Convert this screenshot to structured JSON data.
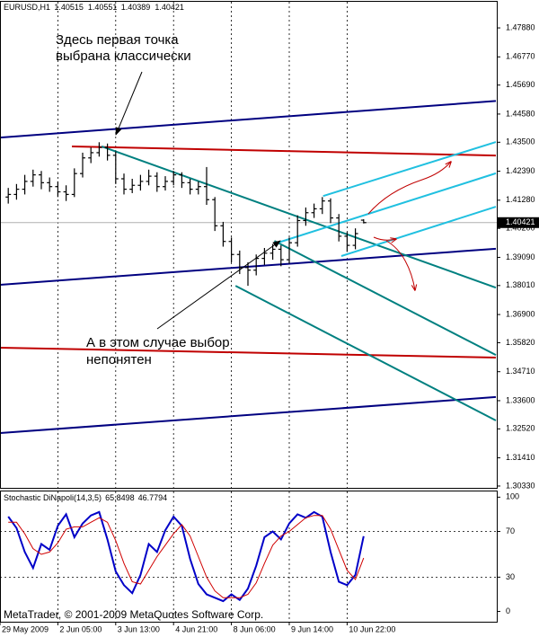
{
  "chart_data": [
    {
      "type": "ohlc",
      "title": "EURUSD,H1",
      "x": [
        1,
        2,
        3,
        4,
        5,
        6,
        7,
        8,
        9,
        10,
        11,
        12,
        13,
        14,
        15,
        16,
        17,
        18,
        19,
        20,
        21,
        22,
        23,
        24,
        25,
        26,
        27,
        28,
        29,
        30,
        31,
        32,
        33,
        34,
        35,
        36,
        37,
        38,
        39,
        40,
        41,
        42,
        43,
        44
      ],
      "open": [
        1.414,
        1.415,
        1.417,
        1.42,
        1.4225,
        1.4195,
        1.418,
        1.416,
        1.415,
        1.423,
        1.429,
        1.431,
        1.433,
        1.43,
        1.421,
        1.417,
        1.4185,
        1.42,
        1.422,
        1.418,
        1.42,
        1.4225,
        1.4195,
        1.417,
        1.418,
        1.413,
        1.403,
        1.397,
        1.392,
        1.387,
        1.386,
        1.3905,
        1.3925,
        1.394,
        1.39,
        1.3965,
        1.405,
        1.408,
        1.4095,
        1.4125,
        1.406,
        1.399,
        1.3955,
        1.40515
      ],
      "high": [
        1.4175,
        1.419,
        1.4225,
        1.4245,
        1.424,
        1.4215,
        1.42,
        1.4185,
        1.425,
        1.431,
        1.433,
        1.435,
        1.4345,
        1.4315,
        1.423,
        1.421,
        1.4225,
        1.4245,
        1.4235,
        1.422,
        1.424,
        1.4235,
        1.421,
        1.42,
        1.4255,
        1.414,
        1.4045,
        1.3985,
        1.3935,
        1.389,
        1.392,
        1.3945,
        1.396,
        1.3955,
        1.3985,
        1.407,
        1.41,
        1.4115,
        1.414,
        1.4135,
        1.4075,
        1.4005,
        1.402,
        1.40551
      ],
      "low": [
        1.4115,
        1.413,
        1.415,
        1.418,
        1.417,
        1.416,
        1.414,
        1.4125,
        1.414,
        1.4215,
        1.427,
        1.4295,
        1.428,
        1.419,
        1.415,
        1.4155,
        1.4165,
        1.4185,
        1.416,
        1.4165,
        1.4185,
        1.4175,
        1.415,
        1.415,
        1.411,
        1.401,
        1.395,
        1.389,
        1.3845,
        1.38,
        1.384,
        1.388,
        1.39,
        1.3875,
        1.3885,
        1.395,
        1.403,
        1.406,
        1.4075,
        1.404,
        1.397,
        1.393,
        1.394,
        1.40389
      ],
      "close": [
        1.415,
        1.417,
        1.42,
        1.4225,
        1.4195,
        1.418,
        1.416,
        1.415,
        1.423,
        1.429,
        1.431,
        1.433,
        1.43,
        1.421,
        1.417,
        1.4185,
        1.42,
        1.422,
        1.418,
        1.42,
        1.4225,
        1.4195,
        1.417,
        1.418,
        1.413,
        1.403,
        1.397,
        1.392,
        1.387,
        1.386,
        1.3905,
        1.3925,
        1.394,
        1.39,
        1.3965,
        1.405,
        1.408,
        1.4095,
        1.4125,
        1.406,
        1.399,
        1.3955,
        1.4,
        1.40421
      ],
      "color": "#000000",
      "xlim": [
        0,
        60
      ],
      "ylim": [
        1.3026,
        1.4888
      ],
      "yticks": [
        {
          "value": 1.4788,
          "label": "1.47880"
        },
        {
          "value": 1.4677,
          "label": "1.46770"
        },
        {
          "value": 1.4569,
          "label": "1.45690"
        },
        {
          "value": 1.4458,
          "label": "1.44580"
        },
        {
          "value": 1.435,
          "label": "1.43500"
        },
        {
          "value": 1.4239,
          "label": "1.42390"
        },
        {
          "value": 1.4128,
          "label": "1.41280"
        },
        {
          "value": 1.402,
          "label": "1.40200"
        },
        {
          "value": 1.3909,
          "label": "1.39090"
        },
        {
          "value": 1.3801,
          "label": "1.38010"
        },
        {
          "value": 1.369,
          "label": "1.36900"
        },
        {
          "value": 1.3582,
          "label": "1.35820"
        },
        {
          "value": 1.3471,
          "label": "1.34710"
        },
        {
          "value": 1.336,
          "label": "1.33600"
        },
        {
          "value": 1.3252,
          "label": "1.32520"
        },
        {
          "value": 1.3141,
          "label": "1.31410"
        },
        {
          "value": 1.3033,
          "label": "1.30330"
        }
      ],
      "grid": "x",
      "current_price_line": true,
      "lines": [
        {
          "color": "#000080",
          "x": [
            0,
            60
          ],
          "y": [
            1.4368,
            1.4508
          ]
        },
        {
          "color": "#000080",
          "x": [
            0,
            60
          ],
          "y": [
            1.3804,
            1.3942
          ]
        },
        {
          "color": "#000080",
          "x": [
            0,
            60
          ],
          "y": [
            1.3236,
            1.3374
          ]
        },
        {
          "color": "#c00000",
          "x": [
            8.7,
            60
          ],
          "y": [
            1.4334,
            1.4299
          ]
        },
        {
          "color": "#c00000",
          "x": [
            0,
            60
          ],
          "y": [
            1.3563,
            1.3525
          ]
        },
        {
          "color": "#008080",
          "x": [
            12.3,
            60
          ],
          "y": [
            1.4334,
            1.3793
          ]
        },
        {
          "color": "#008080",
          "x": [
            33.2,
            60
          ],
          "y": [
            1.3972,
            1.3535
          ]
        },
        {
          "color": "#008080",
          "x": [
            28.5,
            60
          ],
          "y": [
            1.38,
            1.3284
          ]
        },
        {
          "color": "#20c0e0",
          "x": [
            39.1,
            60
          ],
          "y": [
            1.4144,
            1.4351
          ]
        },
        {
          "color": "#20c0e0",
          "x": [
            33.7,
            60
          ],
          "y": [
            1.3966,
            1.4231
          ]
        },
        {
          "color": "#20c0e0",
          "x": [
            41.3,
            60
          ],
          "y": [
            1.3914,
            1.4103
          ]
        }
      ],
      "annotations": [
        [
          "Здесь первая точка",
          "выбрана классически"
        ],
        [
          "А в этом случае выбор",
          "непонятен"
        ]
      ]
    },
    {
      "type": "line",
      "title": "Stochastic DiNapoli(14,3,5)",
      "x": [
        1,
        2,
        3,
        4,
        5,
        6,
        7,
        8,
        9,
        10,
        11,
        12,
        13,
        14,
        15,
        16,
        17,
        18,
        19,
        20,
        21,
        22,
        23,
        24,
        25,
        26,
        27,
        28,
        29,
        30,
        31,
        32,
        33,
        34,
        35,
        36,
        37,
        38,
        39,
        40,
        41,
        42,
        43,
        44
      ],
      "series": [
        {
          "color": "#0000c8",
          "values": [
            83,
            73,
            52,
            38,
            59,
            54,
            75,
            85,
            65,
            77,
            84,
            87,
            63,
            35,
            23,
            16,
            32,
            59,
            52,
            71,
            83,
            75,
            46,
            24,
            15,
            12,
            9,
            15,
            10,
            20,
            40,
            65,
            70,
            63,
            77,
            85,
            82,
            87,
            83,
            52,
            26,
            23,
            32,
            65.8498
          ]
        },
        {
          "color": "#d00000",
          "values": [
            78,
            78,
            68,
            55,
            50,
            52,
            60,
            72,
            74,
            74,
            78,
            82,
            78,
            62,
            42,
            26,
            24,
            36,
            48,
            58,
            68,
            76,
            66,
            48,
            30,
            18,
            12,
            12,
            12,
            15,
            25,
            42,
            58,
            66,
            70,
            76,
            82,
            84,
            84,
            72,
            54,
            36,
            28,
            46.7794
          ]
        }
      ],
      "xlim": [
        0,
        60
      ],
      "xticks": [
        {
          "value": 0,
          "label": "29 May 2009"
        },
        {
          "value": 7,
          "label": "2 Jun 05:00"
        },
        {
          "value": 14,
          "label": "3 Jun 13:00"
        },
        {
          "value": 21,
          "label": "4 Jun 21:00"
        },
        {
          "value": 28,
          "label": "8 Jun 06:00"
        },
        {
          "value": 35,
          "label": "9 Jun 14:00"
        },
        {
          "value": 42,
          "label": "10 Jun 22:00"
        }
      ],
      "ylim": [
        -9,
        105
      ],
      "yticks": [
        0,
        30,
        70,
        100
      ],
      "levels": [
        30,
        70
      ],
      "watermark": "MetaTrader, © 2001-2009 MetaQuotes Software Corp."
    }
  ]
}
